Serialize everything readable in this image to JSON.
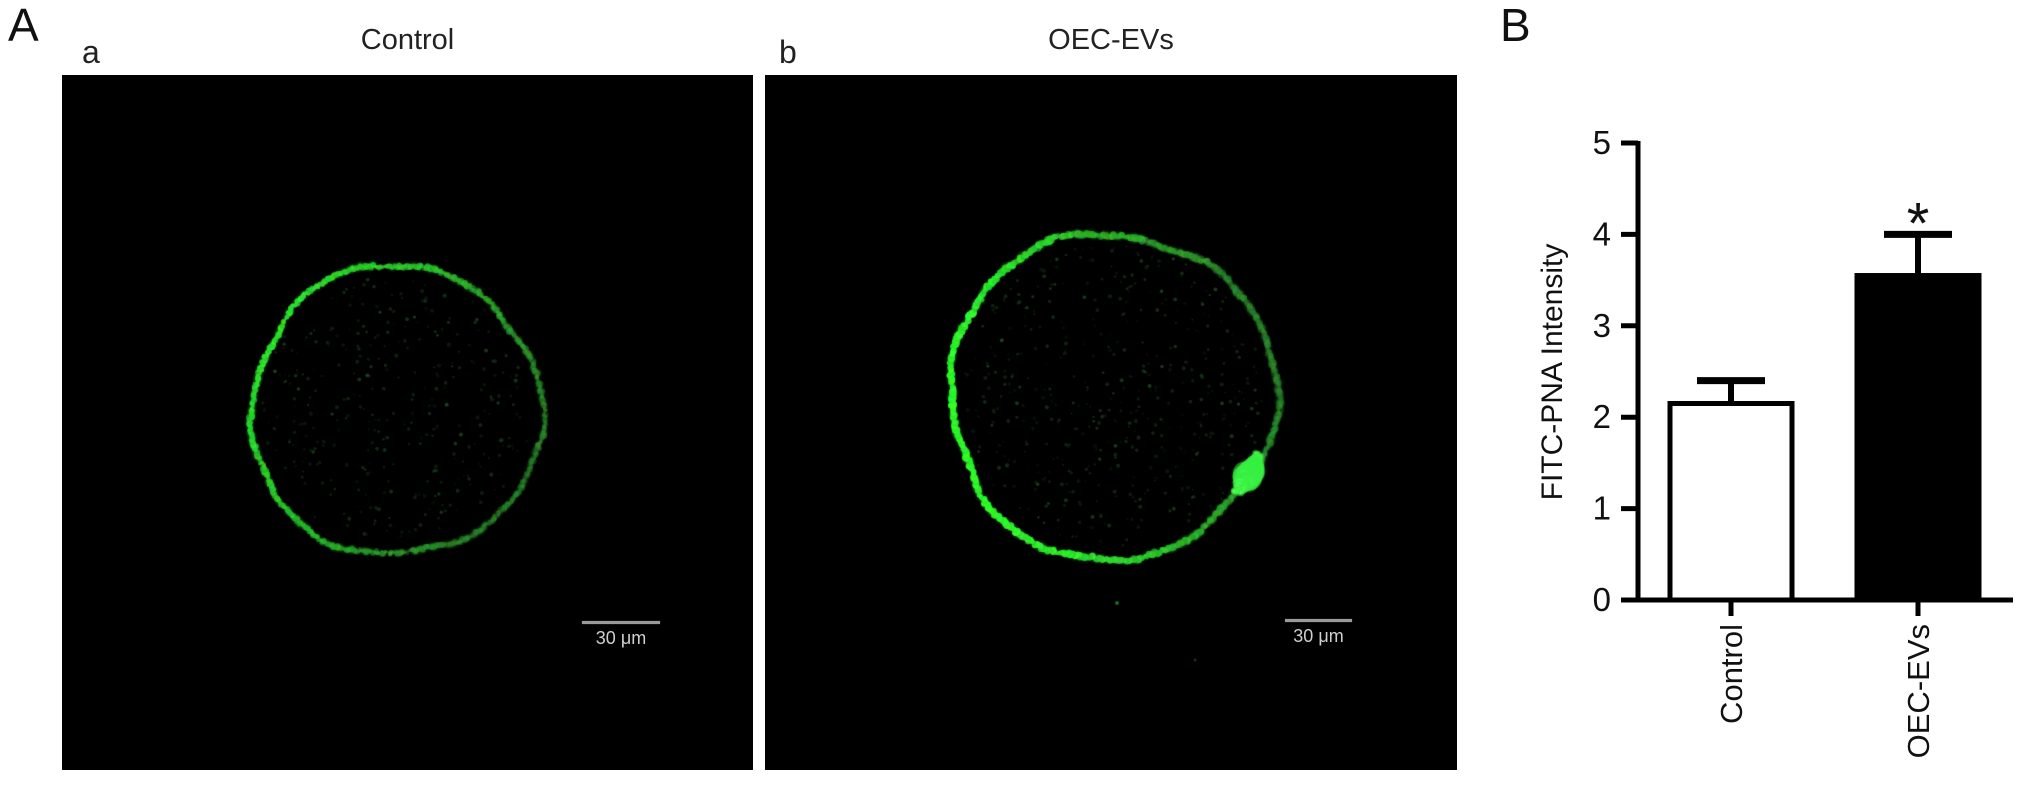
{
  "figure": {
    "panel_a_label": "A",
    "panel_b_label": "B"
  },
  "micrographs": [
    {
      "sublabel": "a",
      "title": "Control",
      "scale_bar_label": "30 μm",
      "staining": "FITC-PNA ring at oocyte membrane",
      "ring_brightness": "sparse dotted",
      "has_bright_patch": false
    },
    {
      "sublabel": "b",
      "title": "OEC-EVs",
      "scale_bar_label": "30 μm",
      "staining": "FITC-PNA ring at oocyte membrane",
      "ring_brightness": "bright continuous",
      "has_bright_patch": true
    }
  ],
  "colors": {
    "fluorescence_green": "#35e02f",
    "micrograph_background": "#000000",
    "scale_bar_line": "#9a9a9a",
    "scale_bar_text": "#cfcfcf",
    "axis_color": "#000000"
  },
  "chart_data": {
    "type": "bar",
    "categories": [
      "Control",
      "OEC-EVs"
    ],
    "values": [
      2.15,
      3.55
    ],
    "errors": [
      0.25,
      0.45
    ],
    "significance_labels": [
      "",
      "*"
    ],
    "title": "",
    "xlabel": "",
    "ylabel": "FITC-PNA Intensity",
    "ylim": [
      0,
      5
    ],
    "yticks": [
      0,
      1,
      2,
      3,
      4,
      5
    ],
    "bar_fill_colors": [
      "#ffffff",
      "#000000"
    ],
    "bar_border_color": "#000000",
    "grid": false,
    "legend_position": "none",
    "x_tick_label_rotation_deg": 90
  }
}
